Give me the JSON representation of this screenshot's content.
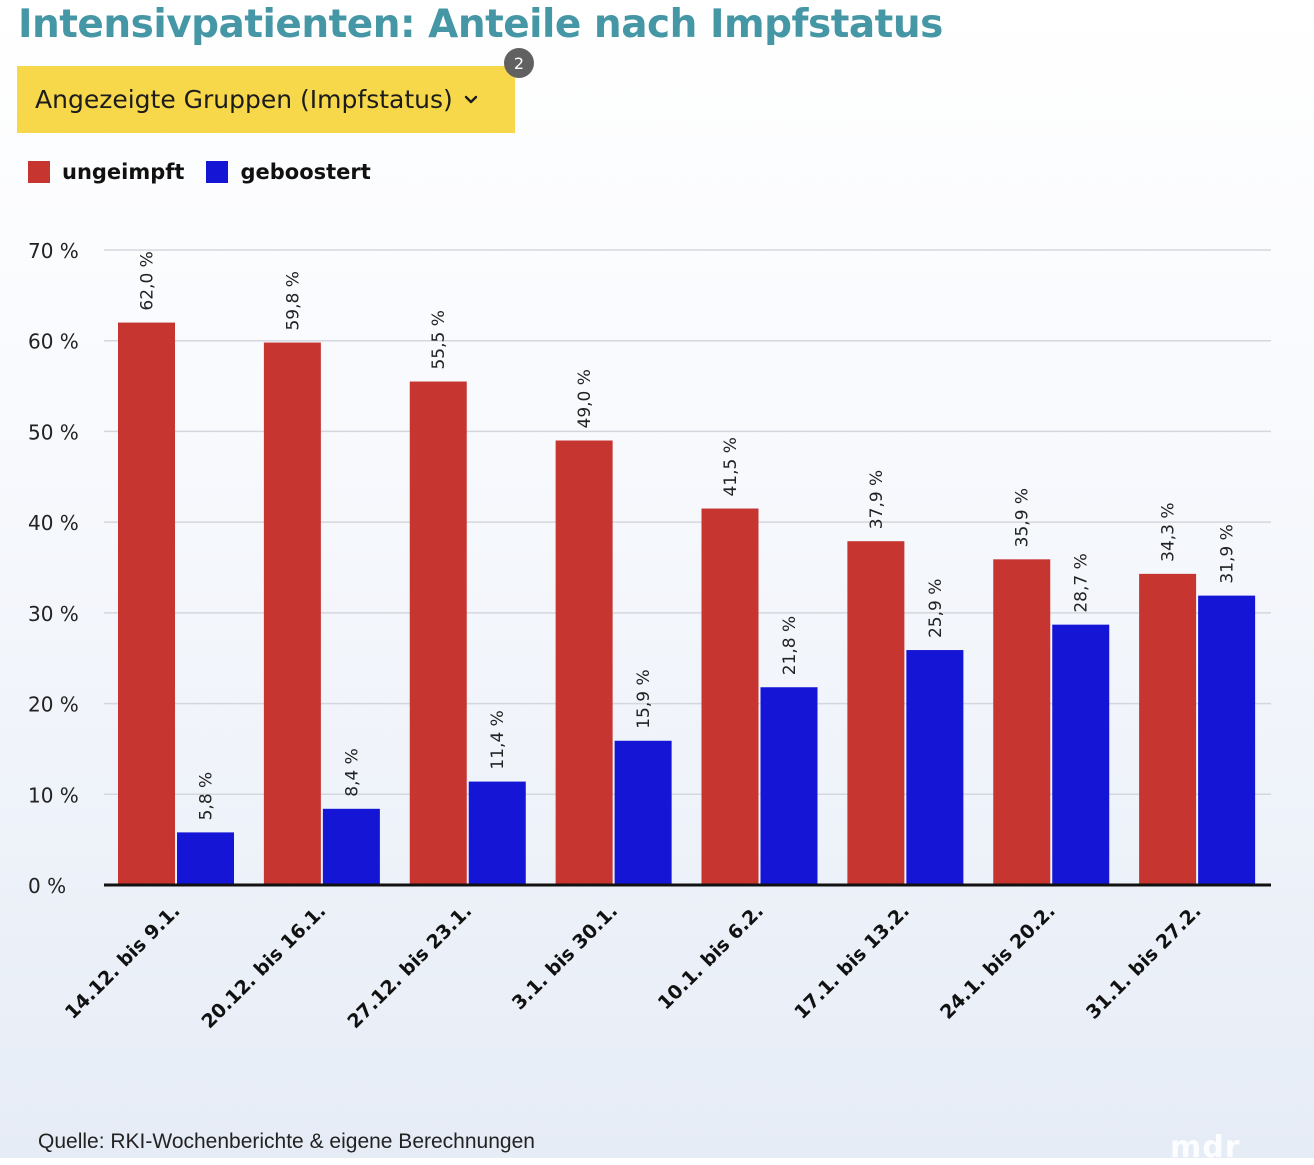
{
  "title": "Intensivpatienten: Anteile nach Impfstatus",
  "dropdown": {
    "label": "Angezeigte Gruppen (Impfstatus)",
    "badge": "2"
  },
  "legend": [
    {
      "label": "ungeimpft",
      "color": "#c63530"
    },
    {
      "label": "geboostert",
      "color": "#1515d6"
    }
  ],
  "source": "Quelle: RKI-Wochenberichte & eigene Berechnungen",
  "logo": "mdr",
  "chart_data": {
    "type": "bar",
    "title": "Intensivpatienten: Anteile nach Impfstatus",
    "xlabel": "",
    "ylabel": "",
    "ylim": [
      0,
      70
    ],
    "yticks": [
      0,
      10,
      20,
      30,
      40,
      50,
      60,
      70
    ],
    "ytick_labels": [
      "0 %",
      "10 %",
      "20 %",
      "30 %",
      "40 %",
      "50 %",
      "60 %",
      "70 %"
    ],
    "grid": true,
    "legend_position": "top-left",
    "categories": [
      "14.12. bis 9.1.",
      "20.12. bis 16.1.",
      "27.12. bis 23.1.",
      "3.1. bis 30.1.",
      "10.1. bis 6.2.",
      "17.1. bis 13.2.",
      "24.1. bis 20.2.",
      "31.1. bis 27.2."
    ],
    "series": [
      {
        "name": "ungeimpft",
        "color": "#c63530",
        "values": [
          62.0,
          59.8,
          55.5,
          49.0,
          41.5,
          37.9,
          35.9,
          34.3
        ],
        "labels": [
          "62,0 %",
          "59,8 %",
          "55,5 %",
          "49,0 %",
          "41,5 %",
          "37,9 %",
          "35,9 %",
          "34,3 %"
        ]
      },
      {
        "name": "geboostert",
        "color": "#1515d6",
        "values": [
          5.8,
          8.4,
          11.4,
          15.9,
          21.8,
          25.9,
          28.7,
          31.9
        ],
        "labels": [
          "5,8 %",
          "8,4 %",
          "11,4 %",
          "15,9 %",
          "21,8 %",
          "25,9 %",
          "28,7 %",
          "31,9 %"
        ]
      }
    ]
  }
}
